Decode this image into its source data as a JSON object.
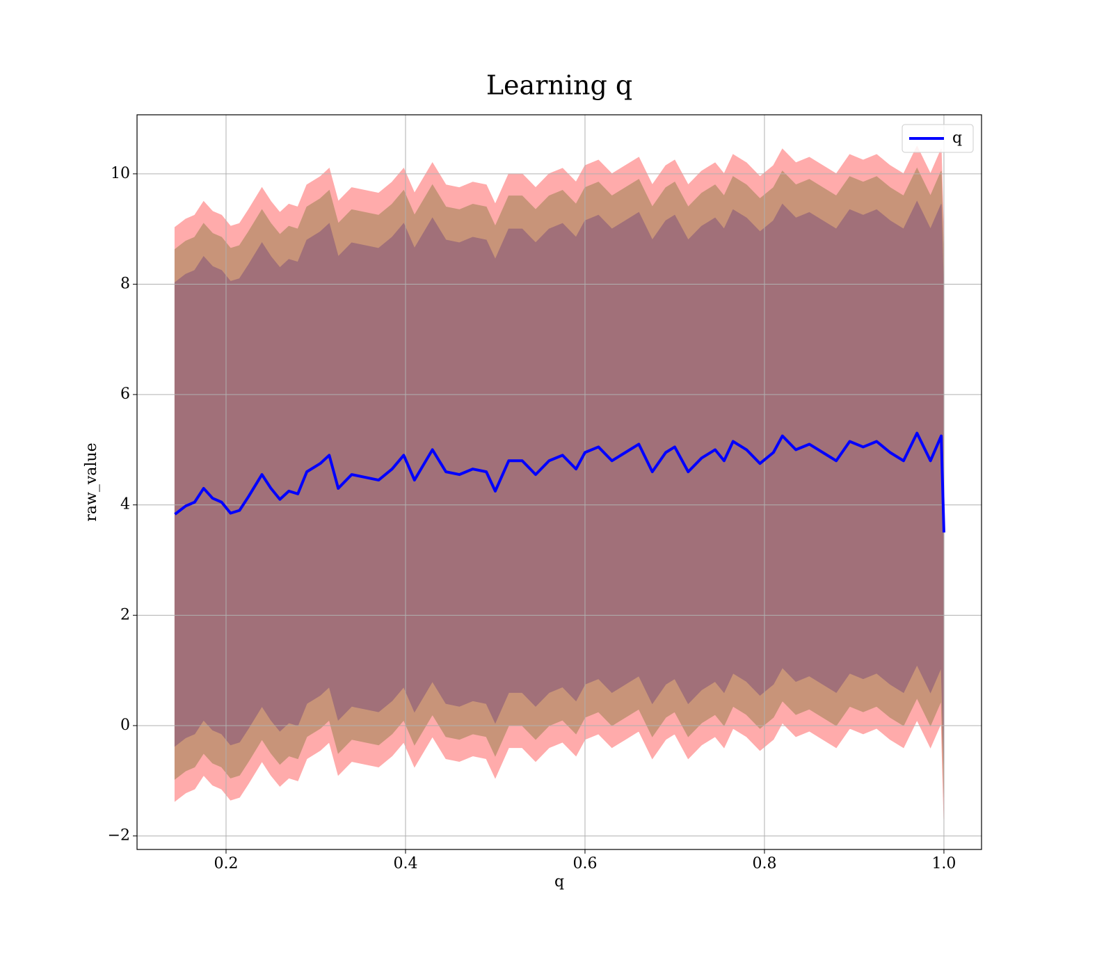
{
  "chart_data": {
    "type": "line",
    "title": "Learning q",
    "xlabel": "q",
    "ylabel": "raw_value",
    "xlim": [
      0.1008,
      1.0419
    ],
    "ylim": [
      -2.245,
      11.07
    ],
    "xticks": [
      0.2,
      0.4,
      0.6,
      0.8,
      {
        "value": 1.0,
        "label": "1.0"
      }
    ],
    "yticks": [
      {
        "value": -2,
        "label": "−2"
      },
      0,
      2,
      4,
      6,
      8,
      10
    ],
    "grid": true,
    "legend": "upper right",
    "x": [
      0.143,
      0.155,
      0.165,
      0.175,
      0.185,
      0.195,
      0.205,
      0.215,
      0.225,
      0.24,
      0.25,
      0.26,
      0.27,
      0.28,
      0.29,
      0.305,
      0.315,
      0.325,
      0.34,
      0.355,
      0.37,
      0.385,
      0.398,
      0.41,
      0.43,
      0.445,
      0.46,
      0.475,
      0.49,
      0.5,
      0.515,
      0.53,
      0.545,
      0.56,
      0.575,
      0.59,
      0.6,
      0.615,
      0.63,
      0.645,
      0.66,
      0.675,
      0.69,
      0.7,
      0.715,
      0.73,
      0.745,
      0.755,
      0.765,
      0.78,
      0.795,
      0.81,
      0.82,
      0.835,
      0.85,
      0.865,
      0.88,
      0.895,
      0.91,
      0.925,
      0.94,
      0.955,
      0.97,
      0.985,
      0.997,
      1.0
    ],
    "series": [
      {
        "name": "q",
        "color": "#0000ff",
        "values": [
          3.83,
          3.98,
          4.05,
          4.3,
          4.12,
          4.05,
          3.85,
          3.9,
          4.15,
          4.55,
          4.3,
          4.1,
          4.25,
          4.2,
          4.6,
          4.75,
          4.9,
          4.3,
          4.55,
          4.5,
          4.45,
          4.65,
          4.9,
          4.45,
          5.0,
          4.6,
          4.55,
          4.65,
          4.6,
          4.25,
          4.8,
          4.8,
          4.55,
          4.8,
          4.9,
          4.65,
          4.95,
          5.05,
          4.8,
          4.95,
          5.1,
          4.6,
          4.95,
          5.05,
          4.6,
          4.85,
          5.0,
          4.8,
          5.15,
          5.0,
          4.75,
          4.95,
          5.25,
          5.0,
          5.1,
          4.95,
          4.8,
          5.15,
          5.05,
          5.15,
          4.95,
          4.8,
          5.3,
          4.8,
          5.25,
          3.5
        ]
      }
    ],
    "bands": [
      {
        "color": "#ffabab",
        "lower": [
          -1.37,
          -1.22,
          -1.15,
          -0.9,
          -1.08,
          -1.15,
          -1.35,
          -1.3,
          -1.05,
          -0.65,
          -0.9,
          -1.1,
          -0.95,
          -1.0,
          -0.6,
          -0.45,
          -0.3,
          -0.9,
          -0.65,
          -0.7,
          -0.75,
          -0.55,
          -0.3,
          -0.75,
          -0.2,
          -0.6,
          -0.65,
          -0.55,
          -0.6,
          -0.95,
          -0.4,
          -0.4,
          -0.65,
          -0.4,
          -0.3,
          -0.55,
          -0.25,
          -0.15,
          -0.4,
          -0.25,
          -0.1,
          -0.6,
          -0.25,
          -0.15,
          -0.6,
          -0.35,
          -0.2,
          -0.4,
          -0.05,
          -0.2,
          -0.45,
          -0.25,
          0.05,
          -0.2,
          -0.1,
          -0.25,
          -0.4,
          -0.05,
          -0.15,
          -0.05,
          -0.25,
          -0.4,
          0.1,
          -0.4,
          0.05,
          -1.7
        ],
        "upper": [
          9.03,
          9.18,
          9.25,
          9.5,
          9.32,
          9.25,
          9.05,
          9.1,
          9.35,
          9.75,
          9.5,
          9.3,
          9.45,
          9.4,
          9.8,
          9.95,
          10.1,
          9.5,
          9.75,
          9.7,
          9.65,
          9.85,
          10.1,
          9.65,
          10.2,
          9.8,
          9.75,
          9.85,
          9.8,
          9.45,
          10.0,
          10.0,
          9.75,
          10.0,
          10.1,
          9.85,
          10.15,
          10.25,
          10.0,
          10.15,
          10.3,
          9.8,
          10.15,
          10.25,
          9.8,
          10.05,
          10.2,
          10.0,
          10.35,
          10.2,
          9.95,
          10.15,
          10.45,
          10.2,
          10.3,
          10.15,
          10.0,
          10.35,
          10.25,
          10.35,
          10.15,
          10.0,
          10.5,
          10.0,
          10.45,
          8.7
        ]
      },
      {
        "color": "#c89479",
        "lower": [
          -0.97,
          -0.82,
          -0.75,
          -0.5,
          -0.68,
          -0.75,
          -0.95,
          -0.9,
          -0.65,
          -0.25,
          -0.5,
          -0.7,
          -0.55,
          -0.6,
          -0.2,
          -0.05,
          0.1,
          -0.5,
          -0.25,
          -0.3,
          -0.35,
          -0.15,
          0.1,
          -0.35,
          0.2,
          -0.2,
          -0.25,
          -0.15,
          -0.2,
          -0.55,
          0,
          0,
          -0.25,
          0,
          0.1,
          -0.15,
          0.15,
          0.25,
          0,
          0.15,
          0.3,
          -0.2,
          0.15,
          0.25,
          -0.2,
          0.05,
          0.2,
          0,
          0.35,
          0.2,
          -0.05,
          0.15,
          0.45,
          0.2,
          0.3,
          0.15,
          0,
          0.35,
          0.25,
          0.35,
          0.15,
          0,
          0.5,
          0,
          0.45,
          -1.3
        ],
        "upper": [
          8.63,
          8.78,
          8.85,
          9.1,
          8.92,
          8.85,
          8.65,
          8.7,
          8.95,
          9.35,
          9.1,
          8.9,
          9.05,
          9.0,
          9.4,
          9.55,
          9.7,
          9.1,
          9.35,
          9.3,
          9.25,
          9.45,
          9.7,
          9.25,
          9.8,
          9.4,
          9.35,
          9.45,
          9.4,
          9.05,
          9.6,
          9.6,
          9.35,
          9.6,
          9.7,
          9.45,
          9.75,
          9.85,
          9.6,
          9.75,
          9.9,
          9.4,
          9.75,
          9.85,
          9.4,
          9.65,
          9.8,
          9.6,
          9.95,
          9.8,
          9.55,
          9.75,
          10.05,
          9.8,
          9.9,
          9.75,
          9.6,
          9.95,
          9.85,
          9.95,
          9.75,
          9.6,
          10.1,
          9.6,
          10.05,
          8.3
        ]
      },
      {
        "color": "#a17079",
        "lower": [
          -0.37,
          -0.22,
          -0.15,
          0.1,
          -0.08,
          -0.15,
          -0.35,
          -0.3,
          -0.05,
          0.35,
          0.1,
          -0.1,
          0.05,
          0,
          0.4,
          0.55,
          0.7,
          0.1,
          0.35,
          0.3,
          0.25,
          0.45,
          0.7,
          0.25,
          0.8,
          0.4,
          0.35,
          0.45,
          0.4,
          0.05,
          0.6,
          0.6,
          0.35,
          0.6,
          0.7,
          0.45,
          0.75,
          0.85,
          0.6,
          0.75,
          0.9,
          0.4,
          0.75,
          0.85,
          0.4,
          0.65,
          0.8,
          0.6,
          0.95,
          0.8,
          0.55,
          0.75,
          1.05,
          0.8,
          0.9,
          0.75,
          0.6,
          0.95,
          0.85,
          0.95,
          0.75,
          0.6,
          1.1,
          0.6,
          1.05,
          -0.7
        ],
        "upper": [
          8.03,
          8.18,
          8.25,
          8.5,
          8.32,
          8.25,
          8.05,
          8.1,
          8.35,
          8.75,
          8.5,
          8.3,
          8.45,
          8.4,
          8.8,
          8.95,
          9.1,
          8.5,
          8.75,
          8.7,
          8.65,
          8.85,
          9.1,
          8.65,
          9.2,
          8.8,
          8.75,
          8.85,
          8.8,
          8.45,
          9.0,
          9.0,
          8.75,
          9.0,
          9.1,
          8.85,
          9.15,
          9.25,
          9.0,
          9.15,
          9.3,
          8.8,
          9.15,
          9.25,
          8.8,
          9.05,
          9.2,
          9.0,
          9.35,
          9.2,
          8.95,
          9.15,
          9.45,
          9.2,
          9.3,
          9.15,
          9.0,
          9.35,
          9.25,
          9.35,
          9.15,
          9.0,
          9.5,
          9.0,
          9.45,
          7.7
        ]
      }
    ]
  }
}
